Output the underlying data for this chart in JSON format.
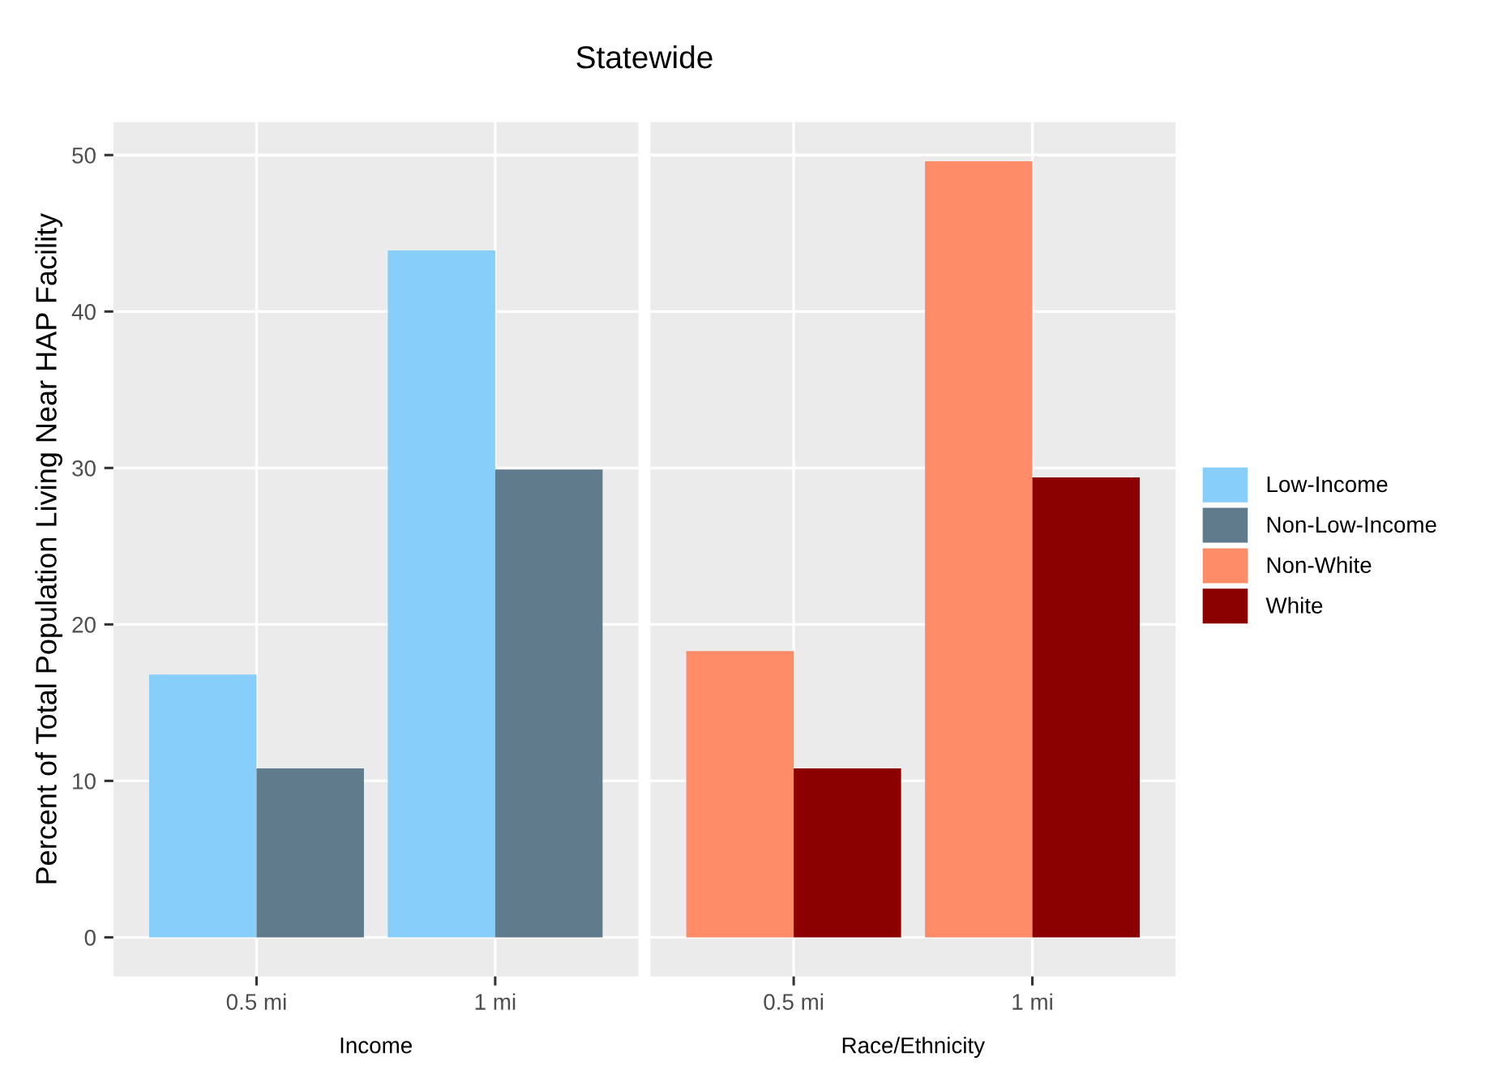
{
  "chart_data": [
    {
      "type": "bar",
      "title": "Statewide",
      "xlabel": "Income",
      "ylabel": "Percent of Total Population Living Near HAP Facility",
      "categories": [
        "0.5 mi",
        "1 mi"
      ],
      "series": [
        {
          "name": "Low-Income",
          "color": "#87cefa",
          "values": [
            16.8,
            43.9
          ]
        },
        {
          "name": "Non-Low-Income",
          "color": "#607b8b",
          "values": [
            10.8,
            29.9
          ]
        }
      ],
      "ylim": [
        -2.5,
        52.1
      ],
      "yticks": [
        0,
        10,
        20,
        30,
        40,
        50
      ],
      "grid": true,
      "legend": "right"
    },
    {
      "type": "bar",
      "xlabel": "Race/Ethnicity",
      "categories": [
        "0.5 mi",
        "1 mi"
      ],
      "series": [
        {
          "name": "Non-White",
          "color": "#ff8c69",
          "values": [
            18.3,
            49.6
          ]
        },
        {
          "name": "White",
          "color": "#8b0000",
          "values": [
            10.8,
            29.4
          ]
        }
      ],
      "ylim": [
        -2.5,
        52.1
      ],
      "yticks": [
        0,
        10,
        20,
        30,
        40,
        50
      ],
      "grid": true,
      "legend": "right",
      "tick_labels": "x"
    }
  ]
}
